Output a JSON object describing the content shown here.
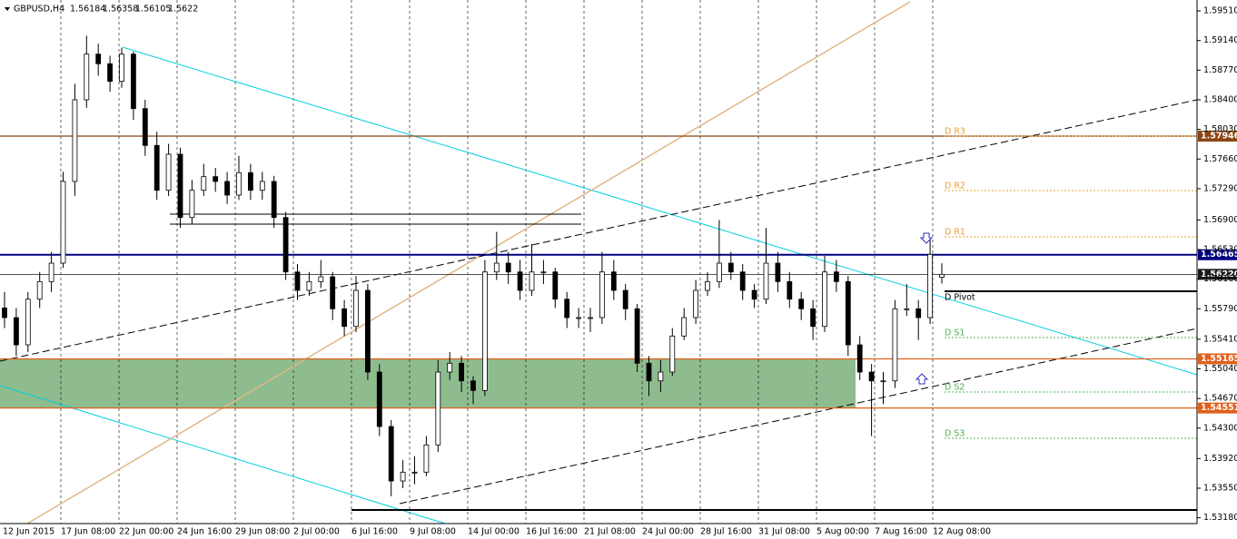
{
  "chart_data": {
    "type": "candlestick",
    "title": "GBPUSD,H4",
    "up_color": "#ffffff",
    "down_color": "#000000",
    "ylim": [
      1.53108,
      1.59646
    ],
    "yticks": [
      {
        "value": 1.5951,
        "label": "1.59510"
      },
      {
        "value": 1.5914,
        "label": "1.59140"
      },
      {
        "value": 1.5877,
        "label": "1.58770"
      },
      {
        "value": 1.584,
        "label": "1.58400"
      },
      {
        "value": 1.5803,
        "label": "1.58030"
      },
      {
        "value": 1.5766,
        "label": "1.57660"
      },
      {
        "value": 1.5729,
        "label": "1.57290"
      },
      {
        "value": 1.569,
        "label": "1.56900"
      },
      {
        "value": 1.5653,
        "label": "1.56530"
      },
      {
        "value": 1.5616,
        "label": "1.56160"
      },
      {
        "value": 1.5579,
        "label": "1.55790"
      },
      {
        "value": 1.5541,
        "label": "1.55410"
      },
      {
        "value": 1.5504,
        "label": "1.55040"
      },
      {
        "value": 1.5467,
        "label": "1.54670"
      },
      {
        "value": 1.543,
        "label": "1.54300"
      },
      {
        "value": 1.5392,
        "label": "1.53920"
      },
      {
        "value": 1.5355,
        "label": "1.53550"
      },
      {
        "value": 1.5318,
        "label": "1.53180"
      }
    ],
    "xlabels": [
      "12 Jun 2015",
      "17 Jun 08:00",
      "22 Jun 00:00",
      "24 Jun 16:00",
      "29 Jun 08:00",
      "2 Jul 00:00",
      "6 Jul 16:00",
      "9 Jul 08:00",
      "14 Jul 00:00",
      "16 Jul 16:00",
      "21 Jul 08:00",
      "24 Jul 00:00",
      "28 Jul 16:00",
      "31 Jul 08:00",
      "5 Aug 00:00",
      "7 Aug 16:00",
      "12 Aug 08:00"
    ],
    "levels": [
      {
        "value": 1.57946,
        "color": "#8b4513",
        "text_color": "#ffffff"
      },
      {
        "value": 1.56465,
        "color": "#000080",
        "text_color": "#ffffff"
      },
      {
        "value": 1.5622,
        "label": "1.56220",
        "color": "#1a1a1a",
        "text_color": "#ffffff"
      },
      {
        "value": 1.55165,
        "color": "#e0601c",
        "text_color": "#ffffff"
      },
      {
        "value": 1.54551,
        "color": "#e0601c",
        "text_color": "#ffffff"
      }
    ],
    "zone_color": "#8fbc8f",
    "pivots": [
      {
        "name": "D R3",
        "value": 1.57946,
        "color": "#e8a030"
      },
      {
        "name": "D R2",
        "value": 1.57267,
        "color": "#e8a030"
      },
      {
        "name": "D R1",
        "value": 1.56689,
        "color": "#e8a030"
      },
      {
        "name": "D Pivot",
        "value": 1.56009,
        "color": "#000000"
      },
      {
        "name": "D S1",
        "value": 1.55431,
        "color": "#50b050"
      },
      {
        "name": "D S2",
        "value": 1.54751,
        "color": "#50b050"
      },
      {
        "name": "D S3",
        "value": 1.54173,
        "color": "#50b050"
      }
    ],
    "candles": [
      [
        1.558,
        1.56,
        1.5555,
        1.5568
      ],
      [
        1.5568,
        1.558,
        1.552,
        1.5534
      ],
      [
        1.5534,
        1.56,
        1.5525,
        1.5591
      ],
      [
        1.5591,
        1.5625,
        1.558,
        1.5613
      ],
      [
        1.5613,
        1.565,
        1.56,
        1.5636
      ],
      [
        1.5636,
        1.575,
        1.563,
        1.5738
      ],
      [
        1.5738,
        1.586,
        1.572,
        1.584
      ],
      [
        1.584,
        1.592,
        1.583,
        1.5897
      ],
      [
        1.5897,
        1.591,
        1.587,
        1.5885
      ],
      [
        1.5885,
        1.5895,
        1.585,
        1.5863
      ],
      [
        1.5863,
        1.5905,
        1.5855,
        1.5897
      ],
      [
        1.5897,
        1.59,
        1.5815,
        1.5829
      ],
      [
        1.5829,
        1.584,
        1.577,
        1.5783
      ],
      [
        1.5783,
        1.58,
        1.5715,
        1.5727
      ],
      [
        1.5727,
        1.5785,
        1.572,
        1.5772
      ],
      [
        1.5772,
        1.578,
        1.568,
        1.5693
      ],
      [
        1.5693,
        1.574,
        1.5685,
        1.5727
      ],
      [
        1.5727,
        1.576,
        1.572,
        1.5744
      ],
      [
        1.5744,
        1.5755,
        1.5725,
        1.5738
      ],
      [
        1.5738,
        1.575,
        1.571,
        1.5721
      ],
      [
        1.5721,
        1.577,
        1.5715,
        1.5749
      ],
      [
        1.5749,
        1.576,
        1.5715,
        1.5727
      ],
      [
        1.5727,
        1.575,
        1.5715,
        1.5738
      ],
      [
        1.5738,
        1.5745,
        1.568,
        1.5693
      ],
      [
        1.5693,
        1.57,
        1.5615,
        1.5625
      ],
      [
        1.5625,
        1.5635,
        1.559,
        1.5602
      ],
      [
        1.5602,
        1.5625,
        1.5595,
        1.5613
      ],
      [
        1.5613,
        1.564,
        1.5605,
        1.5619
      ],
      [
        1.5619,
        1.5625,
        1.5565,
        1.5579
      ],
      [
        1.5579,
        1.559,
        1.5545,
        1.5557
      ],
      [
        1.5557,
        1.562,
        1.555,
        1.5602
      ],
      [
        1.5602,
        1.561,
        1.549,
        1.55
      ],
      [
        1.55,
        1.551,
        1.542,
        1.5432
      ],
      [
        1.5432,
        1.544,
        1.5345,
        1.5364
      ],
      [
        1.5364,
        1.539,
        1.5355,
        1.5375
      ],
      [
        1.5375,
        1.5395,
        1.536,
        1.5375
      ],
      [
        1.5375,
        1.542,
        1.537,
        1.5409
      ],
      [
        1.5409,
        1.5515,
        1.54,
        1.55
      ],
      [
        1.55,
        1.5525,
        1.549,
        1.5511
      ],
      [
        1.5511,
        1.552,
        1.5475,
        1.5489
      ],
      [
        1.5489,
        1.5495,
        1.546,
        1.5477
      ],
      [
        1.5477,
        1.564,
        1.547,
        1.5625
      ],
      [
        1.5625,
        1.5675,
        1.5615,
        1.5636
      ],
      [
        1.5636,
        1.565,
        1.561,
        1.5625
      ],
      [
        1.5625,
        1.564,
        1.559,
        1.5602
      ],
      [
        1.5602,
        1.566,
        1.5595,
        1.5625
      ],
      [
        1.5625,
        1.564,
        1.561,
        1.5625
      ],
      [
        1.5625,
        1.563,
        1.558,
        1.5591
      ],
      [
        1.5591,
        1.56,
        1.5555,
        1.5568
      ],
      [
        1.5568,
        1.558,
        1.5555,
        1.5568
      ],
      [
        1.5568,
        1.558,
        1.555,
        1.5568
      ],
      [
        1.5568,
        1.565,
        1.556,
        1.5625
      ],
      [
        1.5625,
        1.564,
        1.559,
        1.5602
      ],
      [
        1.5602,
        1.561,
        1.5565,
        1.5579
      ],
      [
        1.5579,
        1.5585,
        1.55,
        1.5511
      ],
      [
        1.5511,
        1.552,
        1.547,
        1.5489
      ],
      [
        1.5489,
        1.5515,
        1.5475,
        1.55
      ],
      [
        1.55,
        1.5555,
        1.5495,
        1.5545
      ],
      [
        1.5545,
        1.558,
        1.554,
        1.5568
      ],
      [
        1.5568,
        1.5615,
        1.556,
        1.5602
      ],
      [
        1.5602,
        1.5625,
        1.5595,
        1.5613
      ],
      [
        1.5613,
        1.569,
        1.5605,
        1.5636
      ],
      [
        1.5636,
        1.565,
        1.5615,
        1.5625
      ],
      [
        1.5625,
        1.5635,
        1.559,
        1.5602
      ],
      [
        1.5602,
        1.561,
        1.558,
        1.5591
      ],
      [
        1.5591,
        1.568,
        1.5585,
        1.5636
      ],
      [
        1.5636,
        1.565,
        1.56,
        1.5613
      ],
      [
        1.5613,
        1.5625,
        1.558,
        1.5591
      ],
      [
        1.5591,
        1.56,
        1.5565,
        1.5579
      ],
      [
        1.5579,
        1.559,
        1.554,
        1.5557
      ],
      [
        1.5557,
        1.5645,
        1.555,
        1.5625
      ],
      [
        1.5625,
        1.564,
        1.56,
        1.5613
      ],
      [
        1.5613,
        1.562,
        1.552,
        1.5534
      ],
      [
        1.5534,
        1.5545,
        1.549,
        1.55
      ],
      [
        1.55,
        1.551,
        1.542,
        1.5489
      ],
      [
        1.5489,
        1.55,
        1.546,
        1.5489
      ],
      [
        1.5489,
        1.559,
        1.548,
        1.5579
      ],
      [
        1.5579,
        1.561,
        1.557,
        1.5579
      ],
      [
        1.5579,
        1.559,
        1.554,
        1.5568
      ],
      [
        1.5568,
        1.5665,
        1.556,
        1.5647
      ],
      [
        1.56184,
        1.56358,
        1.56105,
        1.5622
      ]
    ]
  }
}
